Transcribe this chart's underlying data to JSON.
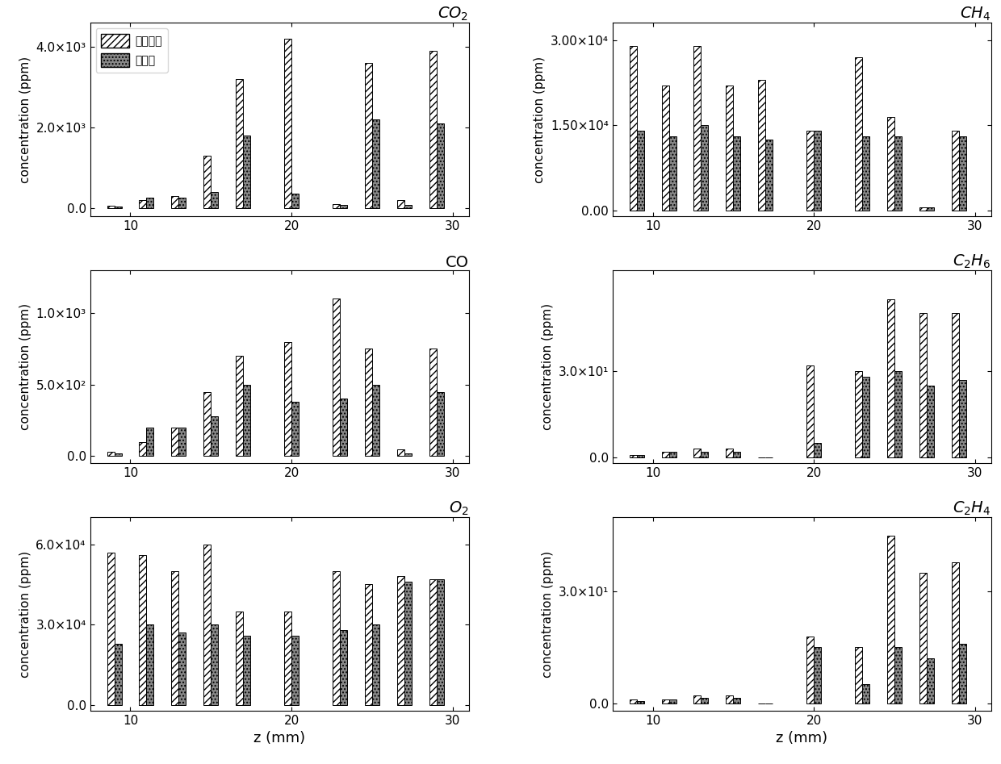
{
  "z_positions": [
    9,
    11,
    13,
    15,
    17,
    20,
    23,
    25,
    27,
    29
  ],
  "CO2_no_coal": [
    50,
    200,
    300,
    1300,
    3200,
    4200,
    100,
    3600,
    200,
    3900
  ],
  "CO2_coal": [
    30,
    250,
    250,
    400,
    1800,
    350,
    80,
    2200,
    80,
    2100
  ],
  "CO_no_coal": [
    30,
    100,
    200,
    450,
    700,
    800,
    1100,
    750,
    50,
    750
  ],
  "CO_coal": [
    20,
    200,
    200,
    280,
    500,
    380,
    400,
    500,
    20,
    450
  ],
  "O2_no_coal": [
    57000,
    56000,
    50000,
    60000,
    35000,
    35000,
    50000,
    45000,
    48000,
    47000
  ],
  "O2_coal": [
    23000,
    30000,
    27000,
    30000,
    26000,
    26000,
    28000,
    30000,
    46000,
    47000
  ],
  "CH4_no_coal": [
    29000,
    22000,
    29000,
    22000,
    23000,
    14000,
    27000,
    16500,
    500,
    14000
  ],
  "CH4_coal": [
    14000,
    13000,
    15000,
    13000,
    12500,
    14000,
    13000,
    13000,
    500,
    13000
  ],
  "C2H6_no_coal": [
    1,
    2,
    3,
    3,
    0,
    32,
    30,
    55,
    50,
    50
  ],
  "C2H6_coal": [
    1,
    2,
    2,
    2,
    0,
    5,
    28,
    30,
    25,
    27
  ],
  "C2H4_no_coal": [
    1,
    1,
    2,
    2,
    0,
    18,
    15,
    45,
    35,
    38
  ],
  "C2H4_coal": [
    0.5,
    1,
    1.5,
    1.5,
    0,
    15,
    5,
    15,
    12,
    16
  ],
  "legend_labels": [
    "未加煤粉",
    "加煤粉"
  ],
  "xlabel": "z (mm)",
  "ylabel": "concentration (ppm)",
  "xlim": [
    7.5,
    31
  ],
  "xticks": [
    10,
    20,
    30
  ]
}
